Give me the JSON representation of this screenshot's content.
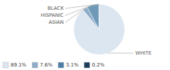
{
  "chart_data": {
    "type": "pie",
    "categories": [
      "WHITE",
      "ASIAN",
      "HISPANIC",
      "BLACK"
    ],
    "values": [
      89.1,
      3.1,
      7.6,
      0.2
    ],
    "colors": [
      "#dce6f0",
      "#8eacc8",
      "#6e9ab8",
      "#2a5070"
    ],
    "legend": "bottom-left",
    "legend_items": [
      {
        "value": 89.1,
        "label": "89.1%",
        "color": "#dce6f0"
      },
      {
        "value": 7.6,
        "label": "7.6%",
        "color": "#8eacc8"
      },
      {
        "value": 3.1,
        "label": "3.1%",
        "color": "#4d7da6"
      },
      {
        "value": 0.2,
        "label": "0.2%",
        "color": "#1a3d5c"
      }
    ]
  }
}
